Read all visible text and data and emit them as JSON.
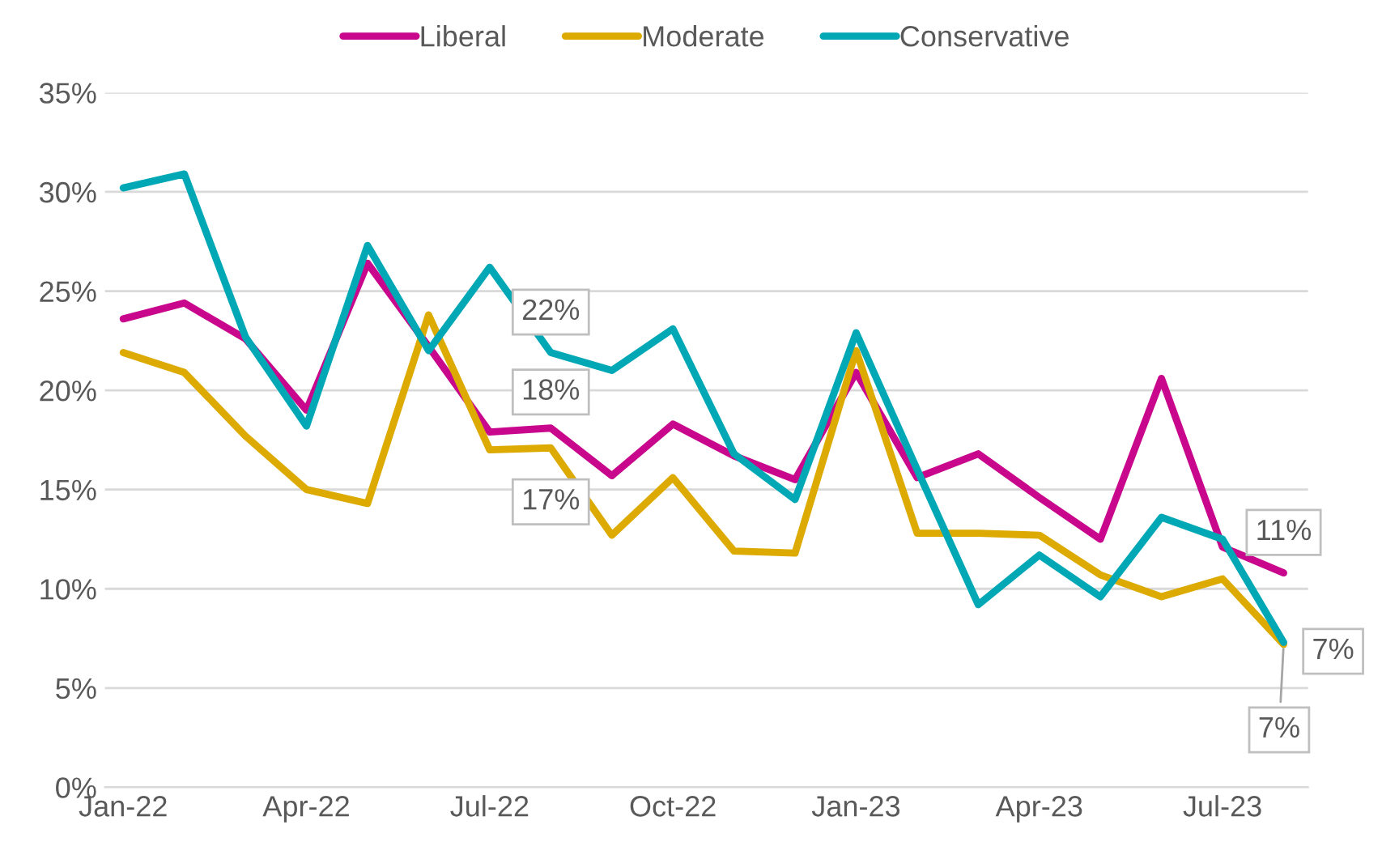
{
  "chart_data": {
    "type": "line",
    "categories": [
      "Jan-22",
      null,
      null,
      "Apr-22",
      null,
      null,
      "Jul-22",
      null,
      null,
      "Oct-22",
      null,
      null,
      "Jan-23",
      null,
      null,
      "Apr-23",
      null,
      null,
      "Jul-23",
      null
    ],
    "series": [
      {
        "name": "Liberal",
        "color": "#c8078c",
        "values": [
          23.6,
          24.4,
          22.6,
          19.0,
          26.4,
          22.2,
          17.9,
          18.1,
          15.7,
          18.3,
          16.7,
          15.5,
          20.9,
          15.6,
          16.8,
          14.6,
          12.5,
          20.6,
          12.1,
          10.8
        ],
        "value_labels": [
          null,
          null,
          null,
          null,
          null,
          null,
          null,
          "18%",
          null,
          null,
          null,
          null,
          null,
          null,
          null,
          null,
          null,
          null,
          null,
          "11%"
        ]
      },
      {
        "name": "Moderate",
        "color": "#dcaa00",
        "values": [
          21.9,
          20.9,
          17.7,
          15.0,
          14.3,
          23.8,
          17.0,
          17.1,
          12.7,
          15.6,
          11.9,
          11.8,
          22.0,
          12.8,
          12.8,
          12.7,
          10.7,
          9.6,
          10.5,
          7.2
        ],
        "value_labels": [
          null,
          null,
          null,
          null,
          null,
          null,
          null,
          "17%",
          null,
          null,
          null,
          null,
          null,
          null,
          null,
          null,
          null,
          null,
          null,
          "7%"
        ]
      },
      {
        "name": "Conservative",
        "color": "#00a8b5",
        "values": [
          30.2,
          30.9,
          22.7,
          18.2,
          27.3,
          22.0,
          26.2,
          21.9,
          21.0,
          23.1,
          16.8,
          14.5,
          22.9,
          16.0,
          9.2,
          11.7,
          9.6,
          13.6,
          12.5,
          7.3
        ],
        "value_labels": [
          null,
          null,
          null,
          null,
          null,
          null,
          null,
          "22%",
          null,
          null,
          null,
          null,
          null,
          null,
          null,
          null,
          null,
          null,
          null,
          "7%"
        ]
      }
    ],
    "ylim": [
      0,
      35
    ],
    "yticks": [
      {
        "value": 0,
        "label": "0%"
      },
      {
        "value": 5,
        "label": "5%"
      },
      {
        "value": 10,
        "label": "10%"
      },
      {
        "value": 15,
        "label": "15%"
      },
      {
        "value": 20,
        "label": "20%"
      },
      {
        "value": 25,
        "label": "25%"
      },
      {
        "value": 30,
        "label": "30%"
      },
      {
        "value": 35,
        "label": "35%"
      }
    ],
    "grid": "y",
    "legend": "top",
    "marker": "none",
    "line_style": "solid"
  }
}
